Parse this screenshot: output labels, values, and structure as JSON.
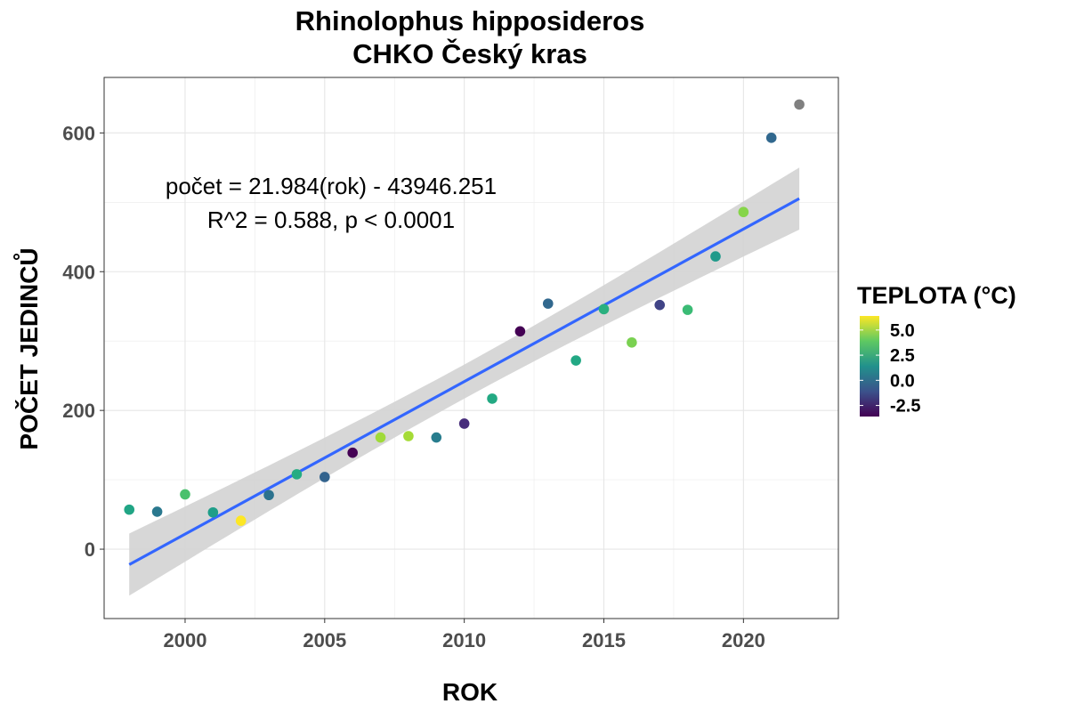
{
  "chart_data": {
    "type": "scatter",
    "title": [
      "Rhinolophus hipposideros",
      "CHKO Český kras"
    ],
    "xlabel": "ROK",
    "ylabel": "POČET JEDINCŮ",
    "xlim": [
      1997.1,
      2023.4
    ],
    "ylim": [
      -100,
      680
    ],
    "xticks": [
      2000,
      2005,
      2010,
      2015,
      2020
    ],
    "yticks": [
      0,
      200,
      400,
      600
    ],
    "grid": true,
    "annotations": [
      "počet = 21.984(rok) - 43946.251",
      "R^2 = 0.588, p < 0.0001"
    ],
    "points": [
      {
        "x": 1998,
        "y": 57,
        "color": "#21a585"
      },
      {
        "x": 1999,
        "y": 54,
        "color": "#2a788e"
      },
      {
        "x": 2000,
        "y": 79,
        "color": "#4ac16d"
      },
      {
        "x": 2001,
        "y": 53,
        "color": "#1f9e89"
      },
      {
        "x": 2002,
        "y": 41,
        "color": "#fde725"
      },
      {
        "x": 2003,
        "y": 78,
        "color": "#2c728e"
      },
      {
        "x": 2004,
        "y": 108,
        "color": "#25ac82"
      },
      {
        "x": 2005,
        "y": 104,
        "color": "#33638d"
      },
      {
        "x": 2006,
        "y": 139,
        "color": "#440154"
      },
      {
        "x": 2007,
        "y": 161,
        "color": "#a0da39"
      },
      {
        "x": 2008,
        "y": 163,
        "color": "#a5db36"
      },
      {
        "x": 2009,
        "y": 161,
        "color": "#287d8e"
      },
      {
        "x": 2010,
        "y": 181,
        "color": "#472d7b"
      },
      {
        "x": 2011,
        "y": 217,
        "color": "#23a983"
      },
      {
        "x": 2012,
        "y": 314,
        "color": "#440154"
      },
      {
        "x": 2013,
        "y": 354,
        "color": "#31688e"
      },
      {
        "x": 2014,
        "y": 272,
        "color": "#22a884"
      },
      {
        "x": 2015,
        "y": 346,
        "color": "#2ab07f"
      },
      {
        "x": 2016,
        "y": 298,
        "color": "#7ad151"
      },
      {
        "x": 2017,
        "y": 352,
        "color": "#414487"
      },
      {
        "x": 2018,
        "y": 345,
        "color": "#3bbb75"
      },
      {
        "x": 2019,
        "y": 422,
        "color": "#1f9a8a"
      },
      {
        "x": 2020,
        "y": 486,
        "color": "#86d549"
      },
      {
        "x": 2021,
        "y": 593,
        "color": "#31688e"
      },
      {
        "x": 2022,
        "y": 641,
        "color": "#808080"
      }
    ],
    "fit": {
      "slope": 21.984,
      "intercept": -43946.251,
      "x_range": [
        1998,
        2022
      ],
      "ci": [
        {
          "x": 1998,
          "lower": -67,
          "upper": 24
        },
        {
          "x": 2010,
          "lower": 217,
          "upper": 264
        },
        {
          "x": 2022,
          "lower": 459,
          "upper": 551
        }
      ],
      "line_color": "#3366ff",
      "band_color": "#d3d3d3"
    },
    "legend": {
      "title": "TEPLOTA (°C)",
      "placement": "right",
      "labels": [
        "5.0",
        "2.5",
        "0.0",
        "-2.5"
      ],
      "label_values": [
        5.0,
        2.5,
        0.0,
        -2.5
      ],
      "range": [
        -3.6,
        6.4
      ],
      "colors": [
        "#440154",
        "#3b528b",
        "#21918c",
        "#5ec962",
        "#fde725"
      ]
    }
  }
}
